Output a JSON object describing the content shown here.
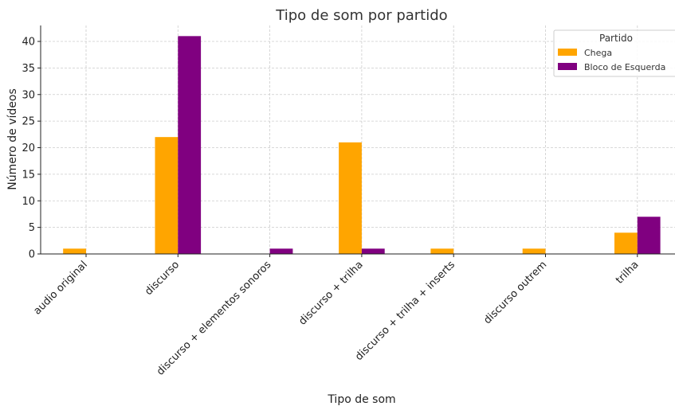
{
  "chart_data": {
    "type": "bar",
    "title": "Tipo de som por partido",
    "xlabel": "Tipo de som",
    "ylabel": "Número de vídeos",
    "categories": [
      "audio original",
      "discurso",
      "discurso + elementos sonoros",
      "discurso + trilha",
      "discurso + trilha + inserts",
      "discurso outrem",
      "trilha"
    ],
    "series": [
      {
        "name": "Chega",
        "color": "#FFA500",
        "values": [
          1,
          22,
          0,
          21,
          1,
          1,
          4
        ]
      },
      {
        "name": "Bloco de Esquerda",
        "color": "#800080",
        "values": [
          0,
          41,
          1,
          1,
          0,
          0,
          7
        ]
      }
    ],
    "ylim": [
      0,
      43
    ],
    "yticks": [
      0,
      5,
      10,
      15,
      20,
      25,
      30,
      35,
      40
    ],
    "grid": true,
    "legend": {
      "title": "Partido",
      "placement": "top-right"
    }
  }
}
